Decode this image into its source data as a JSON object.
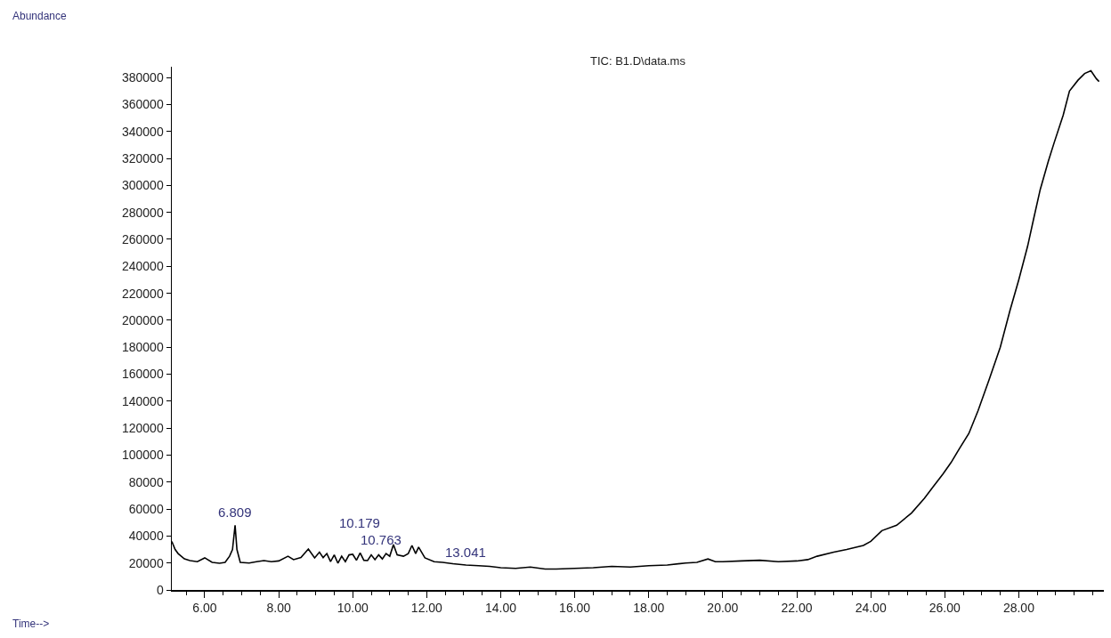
{
  "chart_data": {
    "type": "line",
    "title": "TIC: B1.D\\data.ms",
    "x": [
      5.11,
      5.2,
      5.28,
      5.45,
      5.6,
      5.8,
      6.0,
      6.2,
      6.4,
      6.55,
      6.67,
      6.75,
      6.82,
      6.87,
      6.96,
      7.2,
      7.4,
      7.6,
      7.8,
      8.0,
      8.25,
      8.4,
      8.6,
      8.8,
      8.97,
      9.1,
      9.2,
      9.3,
      9.4,
      9.5,
      9.6,
      9.7,
      9.8,
      9.9,
      10.0,
      10.1,
      10.2,
      10.3,
      10.4,
      10.5,
      10.6,
      10.7,
      10.8,
      10.9,
      11.0,
      11.1,
      11.2,
      11.37,
      11.5,
      11.6,
      11.7,
      11.78,
      11.95,
      12.2,
      12.43,
      12.7,
      13.06,
      13.4,
      13.7,
      14.0,
      14.4,
      14.8,
      15.2,
      15.5,
      16.0,
      16.5,
      17.0,
      17.5,
      18.0,
      18.5,
      19.0,
      19.3,
      19.6,
      19.8,
      20.0,
      20.5,
      21.0,
      21.5,
      22.0,
      22.3,
      22.55,
      23.0,
      23.35,
      23.8,
      24.0,
      24.3,
      24.7,
      25.1,
      25.45,
      25.7,
      25.95,
      26.17,
      26.4,
      26.65,
      26.9,
      27.2,
      27.5,
      27.76,
      28.0,
      28.24,
      28.4,
      28.58,
      28.8,
      28.96,
      29.2,
      29.37,
      29.6,
      29.78,
      29.95,
      30.1,
      30.17
    ],
    "values": [
      36000,
      30000,
      27000,
      23000,
      21800,
      21000,
      23800,
      20500,
      19800,
      20500,
      25000,
      30000,
      48000,
      30000,
      20500,
      20000,
      21000,
      21800,
      21000,
      21500,
      25000,
      22500,
      24000,
      30400,
      23800,
      28000,
      24000,
      27000,
      21000,
      26000,
      19800,
      25000,
      21000,
      26000,
      26400,
      22000,
      27500,
      22000,
      21800,
      26000,
      22500,
      26000,
      23000,
      27000,
      25000,
      33700,
      26000,
      25000,
      27000,
      33000,
      27000,
      31700,
      23800,
      21000,
      20500,
      19500,
      18500,
      18000,
      17500,
      16500,
      16000,
      17000,
      15500,
      15500,
      16000,
      16500,
      17500,
      17000,
      18000,
      18500,
      20000,
      20500,
      23000,
      21000,
      21000,
      21500,
      22000,
      21000,
      21500,
      22500,
      25000,
      28000,
      30000,
      33000,
      36000,
      44000,
      48000,
      57000,
      68000,
      77000,
      86000,
      94500,
      105000,
      116000,
      133000,
      156000,
      180000,
      207000,
      230000,
      255000,
      275000,
      297000,
      318000,
      332000,
      352000,
      370000,
      378000,
      383000,
      385000,
      379000,
      377000
    ],
    "color": "#000000",
    "marker": "none",
    "line_style": "solid",
    "xlim": [
      5.11,
      30.3
    ],
    "ylim": [
      0,
      388000
    ],
    "xticks": [
      {
        "value": 6,
        "label": "6.00"
      },
      {
        "value": 8,
        "label": "8.00"
      },
      {
        "value": 10,
        "label": "10.00"
      },
      {
        "value": 12,
        "label": "12.00"
      },
      {
        "value": 14,
        "label": "14.00"
      },
      {
        "value": 16,
        "label": "16.00"
      },
      {
        "value": 18,
        "label": "18.00"
      },
      {
        "value": 20,
        "label": "20.00"
      },
      {
        "value": 22,
        "label": "22.00"
      },
      {
        "value": 24,
        "label": "24.00"
      },
      {
        "value": 26,
        "label": "26.00"
      },
      {
        "value": 28,
        "label": "28.00"
      }
    ],
    "yticks": [
      0,
      20000,
      40000,
      60000,
      80000,
      100000,
      120000,
      140000,
      160000,
      180000,
      200000,
      220000,
      240000,
      260000,
      280000,
      300000,
      320000,
      340000,
      360000,
      380000
    ],
    "annotations": [
      "Abundance",
      "Time-->",
      {
        "text": "6.809",
        "x": 6.809,
        "y": 48000
      },
      {
        "text": "10.179",
        "x": 10.179,
        "y": 29000
      },
      {
        "text": "10.763",
        "x": 10.763,
        "y": 28000
      },
      {
        "text": "13.041",
        "x": 13.041,
        "y": 18500
      }
    ]
  }
}
